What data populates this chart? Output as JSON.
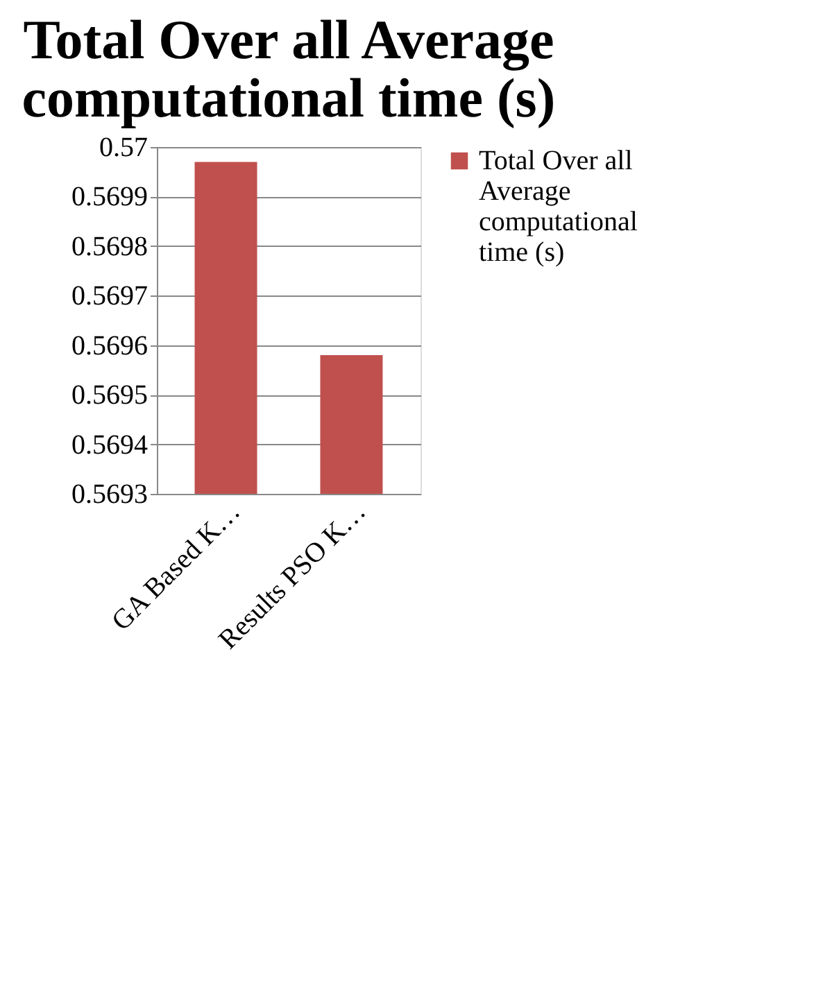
{
  "chart_data": {
    "type": "bar",
    "title": "Total Over all Average computational time (s)",
    "categories": [
      "GA Based K…",
      "Results PSO K…"
    ],
    "series": [
      {
        "name": "Total Over all Average computational time (s)",
        "color": "#c0504d",
        "values": [
          0.56997,
          0.56958
        ]
      }
    ],
    "ylim": [
      0.5693,
      0.57
    ],
    "yticks": [
      0.5693,
      0.5694,
      0.5695,
      0.5696,
      0.5697,
      0.5698,
      0.5699,
      0.57
    ],
    "grid": "y",
    "legend": "right"
  }
}
